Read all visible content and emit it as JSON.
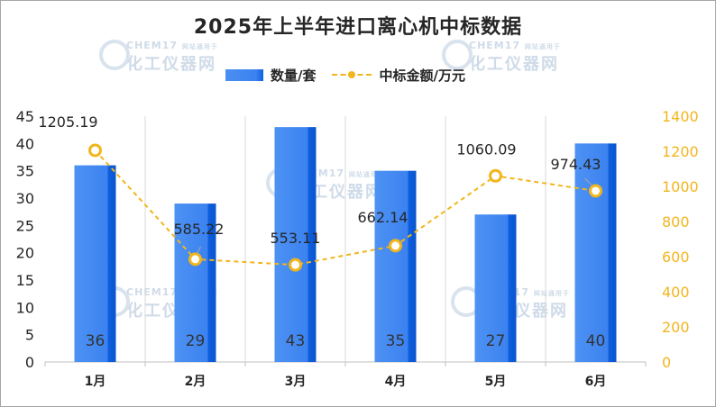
{
  "title": "2025年上半年进口离心机中标数据",
  "watermark": {
    "top": "CHEM17",
    "small": "网站通用于",
    "bottom": "化工仪器网"
  },
  "chart_data": {
    "type": "bar",
    "categories": [
      "1月",
      "2月",
      "3月",
      "4月",
      "5月",
      "6月"
    ],
    "series": [
      {
        "name": "数量/套",
        "type": "bar",
        "axis": "left",
        "color": "#3c82f0",
        "values": [
          36,
          29,
          43,
          35,
          27,
          40
        ]
      },
      {
        "name": "中标金额/万元",
        "type": "line",
        "axis": "right",
        "color": "#f2b51c",
        "values": [
          1205.19,
          585.22,
          553.11,
          662.14,
          1060.09,
          974.43
        ]
      }
    ],
    "ylim_left": [
      0,
      45
    ],
    "yticks_left": [
      0,
      5,
      10,
      15,
      20,
      25,
      30,
      35,
      40,
      45
    ],
    "ylim_right": [
      0,
      1400
    ],
    "yticks_right": [
      0,
      200,
      400,
      600,
      800,
      1000,
      1200,
      1400
    ],
    "grid": "vertical category separators",
    "legend": "top-center"
  }
}
